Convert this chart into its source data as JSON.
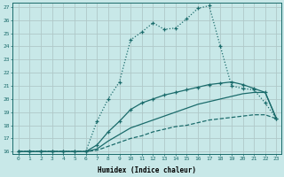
{
  "xlabel": "Humidex (Indice chaleur)",
  "background_color": "#c8e8e8",
  "grid_color": "#b0c8c8",
  "line_color": "#1a6b6b",
  "xlim": [
    -0.5,
    23.4
  ],
  "ylim": [
    15.85,
    27.3
  ],
  "xticks": [
    0,
    1,
    2,
    3,
    4,
    5,
    6,
    7,
    8,
    9,
    10,
    11,
    12,
    13,
    14,
    15,
    16,
    17,
    18,
    19,
    20,
    21,
    22,
    23
  ],
  "yticks": [
    16,
    17,
    18,
    19,
    20,
    21,
    22,
    23,
    24,
    25,
    26,
    27
  ],
  "line1_x": [
    0,
    1,
    2,
    3,
    4,
    5,
    6,
    7,
    8,
    9,
    10,
    11,
    12,
    13,
    14,
    15,
    16,
    17,
    18,
    19,
    20,
    21,
    22,
    23
  ],
  "line1_y": [
    16,
    16,
    16,
    16,
    16,
    16,
    16,
    18.3,
    20.0,
    21.3,
    24.5,
    25.1,
    25.8,
    25.3,
    25.4,
    26.1,
    26.9,
    27.1,
    24.0,
    21.0,
    20.8,
    20.7,
    19.7,
    18.5
  ],
  "line2_x": [
    0,
    1,
    2,
    3,
    4,
    5,
    6,
    7,
    8,
    9,
    10,
    11,
    12,
    13,
    14,
    15,
    16,
    17,
    18,
    19,
    20,
    21,
    22,
    23
  ],
  "line2_y": [
    16,
    16,
    16,
    16,
    16,
    16,
    16,
    16.5,
    17.5,
    18.3,
    19.2,
    19.7,
    20.0,
    20.3,
    20.5,
    20.7,
    20.9,
    21.1,
    21.2,
    21.3,
    21.1,
    20.8,
    20.5,
    18.5
  ],
  "line3_x": [
    0,
    1,
    2,
    3,
    4,
    5,
    6,
    7,
    8,
    9,
    10,
    11,
    12,
    13,
    14,
    15,
    16,
    17,
    18,
    19,
    20,
    21,
    22,
    23
  ],
  "line3_y": [
    16,
    16,
    16,
    16,
    16,
    16,
    16,
    16.2,
    16.8,
    17.3,
    17.8,
    18.1,
    18.4,
    18.7,
    19.0,
    19.3,
    19.6,
    19.8,
    20.0,
    20.2,
    20.4,
    20.5,
    20.5,
    18.5
  ],
  "line4_x": [
    0,
    1,
    2,
    3,
    4,
    5,
    6,
    7,
    8,
    9,
    10,
    11,
    12,
    13,
    14,
    15,
    16,
    17,
    18,
    19,
    20,
    21,
    22,
    23
  ],
  "line4_y": [
    16,
    16,
    16,
    16,
    16,
    16,
    16,
    16.1,
    16.4,
    16.7,
    17.0,
    17.2,
    17.5,
    17.7,
    17.9,
    18.0,
    18.2,
    18.4,
    18.5,
    18.6,
    18.7,
    18.8,
    18.8,
    18.5
  ]
}
